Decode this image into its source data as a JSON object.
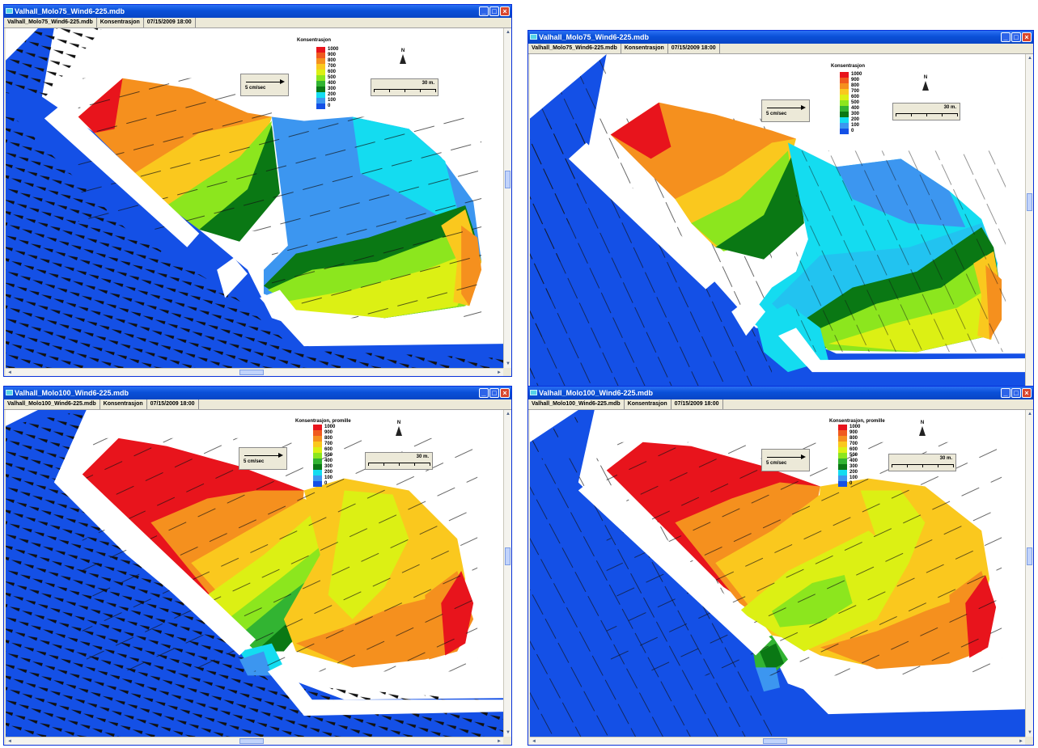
{
  "icons": {
    "app": "app-icon",
    "minimize": "minimize-icon",
    "maximize": "maximize-icon",
    "close": "close-icon",
    "north": "north-arrow-icon"
  },
  "window_buttons": {
    "minimize": "_",
    "maximize": "□",
    "close": "×"
  },
  "scroll_arrows": {
    "up": "▲",
    "down": "▼",
    "left": "◄",
    "right": "►"
  },
  "windows": [
    {
      "title": "Valhall_Molo75_Wind6-225.mdb",
      "info": {
        "file": "Valhall_Molo75_Wind6-225.mdb",
        "layer": "Konsentrasjon",
        "timestamp": "07/15/2009 18:00"
      },
      "legend_title": "Konsentrasjon",
      "vector_label": "5 cm/sec",
      "scale_label": "30 m.",
      "north_label": "N"
    },
    {
      "title": "Valhall_Molo75_Wind6-225.mdb",
      "info": {
        "file": "Valhall_Molo75_Wind6-225.mdb",
        "layer": "Konsentrasjon",
        "timestamp": "07/15/2009 18:00"
      },
      "legend_title": "Konsentrasjon",
      "vector_label": "5 cm/sec",
      "scale_label": "30 m.",
      "north_label": "N"
    },
    {
      "title": "Valhall_Molo100_Wind6-225.mdb",
      "info": {
        "file": "Valhall_Molo100_Wind6-225.mdb",
        "layer": "Konsentrasjon",
        "timestamp": "07/15/2009 18:00"
      },
      "legend_title": "Konsentrasjon, promille",
      "vector_label": "5 cm/sec",
      "scale_label": "30 m.",
      "north_label": "N"
    },
    {
      "title": "Valhall_Molo100_Wind6-225.mdb",
      "info": {
        "file": "Valhall_Molo100_Wind6-225.mdb",
        "layer": "Konsentrasjon",
        "timestamp": "07/15/2009 18:00"
      },
      "legend_title": "Konsentrasjon, promille",
      "vector_label": "5 cm/sec",
      "scale_label": "30 m.",
      "north_label": "N"
    }
  ],
  "legend_scale": [
    {
      "value": "1000",
      "color": "#e8141c"
    },
    {
      "value": "900",
      "color": "#f05a1e"
    },
    {
      "value": "800",
      "color": "#f5901e"
    },
    {
      "value": "700",
      "color": "#fac81e"
    },
    {
      "value": "600",
      "color": "#dcf014"
    },
    {
      "value": "500",
      "color": "#8ce61e"
    },
    {
      "value": "400",
      "color": "#32b432"
    },
    {
      "value": "300",
      "color": "#0a7814"
    },
    {
      "value": "200",
      "color": "#14dcf0"
    },
    {
      "value": "100",
      "color": "#3c96f0"
    },
    {
      "value": "0",
      "color": "#1450e6"
    }
  ]
}
